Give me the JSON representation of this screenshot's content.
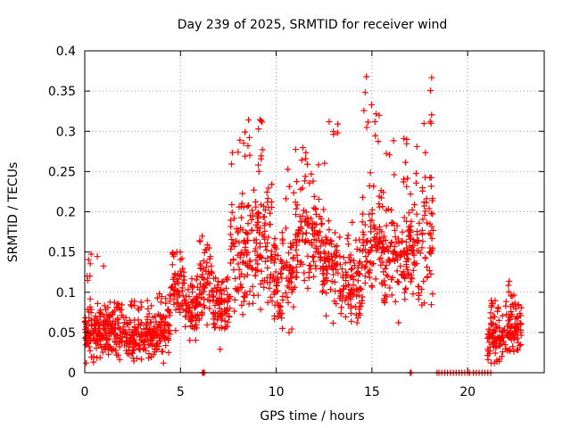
{
  "chart_data": {
    "type": "scatter",
    "title": "Day 239 of 2025, SRMTID for receiver wind",
    "xlabel": "GPS time / hours",
    "ylabel": "SRMTID / TECUs",
    "xlim": [
      0,
      24
    ],
    "ylim": [
      0,
      0.4
    ],
    "x_ticks": [
      0,
      5,
      10,
      15,
      20
    ],
    "y_ticks": [
      0,
      0.05,
      0.1,
      0.15,
      0.2,
      0.25,
      0.3,
      0.35,
      0.4
    ],
    "x_tick_labels": [
      "0",
      "5",
      "10",
      "15",
      "20"
    ],
    "y_tick_labels": [
      "0",
      "0.05",
      "0.1",
      "0.15",
      "0.2",
      "0.25",
      "0.3",
      "0.35",
      "0.4"
    ],
    "grid": true,
    "marker": "+",
    "series_color": "#ff0000",
    "segments": [
      {
        "start": 0.0,
        "end": 1.0,
        "base": 0.05,
        "spread": 0.02,
        "count": 110,
        "max": 0.15
      },
      {
        "start": 1.0,
        "end": 2.2,
        "base": 0.052,
        "spread": 0.018,
        "count": 120,
        "max": 0.09
      },
      {
        "start": 2.2,
        "end": 3.5,
        "base": 0.045,
        "spread": 0.018,
        "count": 120,
        "max": 0.09
      },
      {
        "start": 3.5,
        "end": 4.5,
        "base": 0.055,
        "spread": 0.02,
        "count": 90,
        "max": 0.1
      },
      {
        "start": 4.5,
        "end": 5.2,
        "base": 0.11,
        "spread": 0.025,
        "count": 60,
        "max": 0.15
      },
      {
        "start": 5.2,
        "end": 6.0,
        "base": 0.075,
        "spread": 0.025,
        "count": 70,
        "max": 0.12
      },
      {
        "start": 6.0,
        "end": 6.7,
        "base": 0.11,
        "spread": 0.025,
        "count": 60,
        "max": 0.17
      },
      {
        "start": 6.7,
        "end": 7.6,
        "base": 0.08,
        "spread": 0.02,
        "count": 80,
        "max": 0.12
      },
      {
        "start": 7.6,
        "end": 8.5,
        "base": 0.15,
        "spread": 0.045,
        "count": 80,
        "max": 0.3
      },
      {
        "start": 8.5,
        "end": 9.7,
        "base": 0.16,
        "spread": 0.05,
        "count": 110,
        "max": 0.32
      },
      {
        "start": 9.7,
        "end": 11.0,
        "base": 0.12,
        "spread": 0.04,
        "count": 110,
        "max": 0.26
      },
      {
        "start": 11.0,
        "end": 12.3,
        "base": 0.17,
        "spread": 0.035,
        "count": 110,
        "max": 0.28
      },
      {
        "start": 12.3,
        "end": 13.3,
        "base": 0.14,
        "spread": 0.035,
        "count": 90,
        "max": 0.32
      },
      {
        "start": 13.3,
        "end": 14.5,
        "base": 0.11,
        "spread": 0.03,
        "count": 100,
        "max": 0.2
      },
      {
        "start": 14.5,
        "end": 15.6,
        "base": 0.16,
        "spread": 0.04,
        "count": 100,
        "max": 0.37
      },
      {
        "start": 15.6,
        "end": 16.8,
        "base": 0.14,
        "spread": 0.035,
        "count": 100,
        "max": 0.3
      },
      {
        "start": 16.8,
        "end": 17.6,
        "base": 0.15,
        "spread": 0.04,
        "count": 70,
        "max": 0.29
      },
      {
        "start": 17.6,
        "end": 18.2,
        "base": 0.17,
        "spread": 0.05,
        "count": 55,
        "max": 0.385
      },
      {
        "start": 21.0,
        "end": 22.0,
        "base": 0.045,
        "spread": 0.018,
        "count": 90,
        "max": 0.09
      },
      {
        "start": 22.0,
        "end": 22.8,
        "base": 0.055,
        "spread": 0.02,
        "count": 80,
        "max": 0.115
      }
    ],
    "zero_points": [
      6.15,
      6.2,
      6.25,
      17.0,
      17.05,
      18.4,
      18.5,
      18.65,
      18.8,
      18.95,
      19.1,
      19.25,
      19.4,
      19.55,
      19.7,
      19.85,
      20.0,
      20.1,
      20.3,
      20.45,
      20.6,
      20.75,
      20.9,
      21.05,
      21.2
    ]
  }
}
